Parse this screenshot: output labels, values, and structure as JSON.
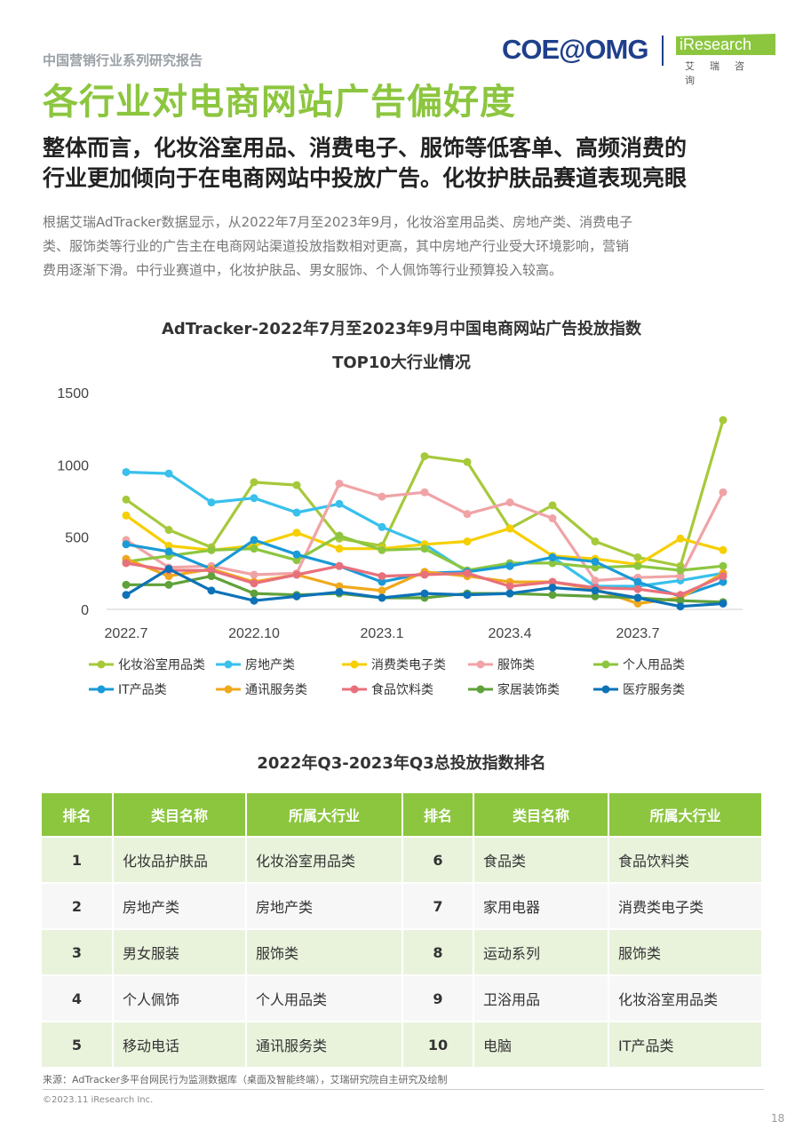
{
  "header": {
    "series_label": "中国营销行业系列研究报告",
    "title": "各行业对电商网站广告偏好度",
    "logo_coe": "COE@OMG",
    "logo_iresearch": "iResearch",
    "logo_cn": "艾瑞咨询"
  },
  "subtitle_lines": [
    "整体而言，化妆浴室用品、消费电子、服饰等低客单、高频消费的",
    "行业更加倾向于在电商网站中投放广告。化妆护肤品赛道表现亮眼"
  ],
  "body_lines": [
    "根据艾瑞AdTracker数据显示，从2022年7月至2023年9月，化妆浴室用品类、房地产类、消费电子",
    "类、服饰类等行业的广告主在电商网站渠道投放指数相对更高，其中房地产行业受大环境影响，营销",
    "费用逐渐下滑。中行业赛道中，化妆护肤品、男女服饰、个人佩饰等行业预算投入较高。"
  ],
  "chart_data": {
    "type": "line",
    "title_lines": [
      "AdTracker-2022年7月至2023年9月中国电商网站广告投放指数",
      "TOP10大行业情况"
    ],
    "x": [
      "2022.7",
      "2022.8",
      "2022.9",
      "2022.10",
      "2022.11",
      "2022.12",
      "2023.1",
      "2023.2",
      "2023.3",
      "2023.4",
      "2023.5",
      "2023.6",
      "2023.7",
      "2023.8",
      "2023.9"
    ],
    "x_tick_labels": [
      "2022.7",
      "2022.10",
      "2023.1",
      "2023.4",
      "2023.7"
    ],
    "y_ticks": [
      "0",
      "500",
      "1000",
      "1500"
    ],
    "ylim": [
      0,
      1500
    ],
    "legend_position": "bottom",
    "series": [
      {
        "name": "化妆浴室用品类",
        "color": "#a6c93a",
        "values": [
          760,
          550,
          430,
          880,
          860,
          490,
          440,
          1060,
          1020,
          560,
          720,
          470,
          360,
          300,
          1310
        ]
      },
      {
        "name": "房地产类",
        "color": "#39c0ec",
        "values": [
          950,
          940,
          740,
          770,
          670,
          730,
          570,
          450,
          260,
          300,
          360,
          160,
          160,
          200,
          250
        ]
      },
      {
        "name": "消费类电子类",
        "color": "#f6cf00",
        "values": [
          650,
          440,
          410,
          440,
          530,
          420,
          420,
          450,
          470,
          560,
          370,
          350,
          310,
          490,
          410
        ]
      },
      {
        "name": "服饰类",
        "color": "#f0a3a6",
        "values": [
          480,
          290,
          300,
          240,
          250,
          870,
          780,
          810,
          660,
          740,
          630,
          200,
          220,
          230,
          810
        ]
      },
      {
        "name": "个人用品类",
        "color": "#8cc63f",
        "values": [
          330,
          370,
          410,
          420,
          340,
          510,
          410,
          420,
          270,
          320,
          320,
          290,
          300,
          270,
          300
        ]
      },
      {
        "name": "IT产品类",
        "color": "#1a9ad7",
        "values": [
          450,
          400,
          280,
          480,
          380,
          300,
          190,
          250,
          260,
          300,
          360,
          330,
          190,
          90,
          190
        ]
      },
      {
        "name": "通讯服务类",
        "color": "#f0a81c",
        "values": [
          350,
          230,
          280,
          190,
          240,
          160,
          130,
          260,
          230,
          190,
          190,
          140,
          40,
          80,
          250
        ]
      },
      {
        "name": "食品饮料类",
        "color": "#e8707b",
        "values": [
          320,
          270,
          270,
          180,
          240,
          300,
          230,
          240,
          250,
          160,
          190,
          150,
          140,
          100,
          230
        ]
      },
      {
        "name": "家居装饰类",
        "color": "#5fa13a",
        "values": [
          170,
          170,
          230,
          110,
          100,
          110,
          80,
          80,
          110,
          110,
          100,
          90,
          80,
          60,
          50
        ]
      },
      {
        "name": "医疗服务类",
        "color": "#0d72b8",
        "values": [
          100,
          280,
          130,
          60,
          90,
          120,
          80,
          110,
          100,
          110,
          150,
          130,
          80,
          20,
          40
        ]
      }
    ]
  },
  "table": {
    "title": "2022年Q3-2023年Q3总投放指数排名",
    "headers": [
      "排名",
      "类目名称",
      "所属大行业",
      "排名",
      "类目名称",
      "所属大行业"
    ],
    "rows": [
      [
        "1",
        "化妆品护肤品",
        "化妆浴室用品类",
        "6",
        "食品类",
        "食品饮料类"
      ],
      [
        "2",
        "房地产类",
        "房地产类",
        "7",
        "家用电器",
        "消费类电子类"
      ],
      [
        "3",
        "男女服装",
        "服饰类",
        "8",
        "运动系列",
        "服饰类"
      ],
      [
        "4",
        "个人佩饰",
        "个人用品类",
        "9",
        "卫浴用品",
        "化妆浴室用品类"
      ],
      [
        "5",
        "移动电话",
        "通讯服务类",
        "10",
        "电脑",
        "IT产品类"
      ]
    ]
  },
  "footer": {
    "source": "来源：AdTracker多平台网民行为监测数据库（桌面及智能终端），艾瑞研究院自主研究及绘制",
    "copyright": "©2023.11 iResearch Inc.",
    "page_number": "18"
  }
}
